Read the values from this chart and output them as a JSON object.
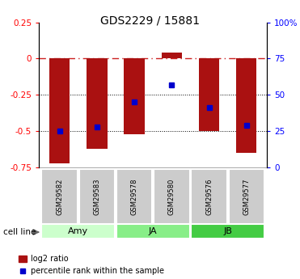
{
  "title": "GDS2229 / 15881",
  "samples": [
    "GSM29582",
    "GSM29583",
    "GSM29578",
    "GSM29580",
    "GSM29576",
    "GSM29577"
  ],
  "log2_ratios": [
    -0.72,
    -0.62,
    -0.52,
    0.04,
    -0.5,
    -0.65
  ],
  "percentile_ranks_y": [
    -0.5,
    -0.47,
    -0.3,
    -0.18,
    -0.34,
    -0.46
  ],
  "cell_lines": [
    {
      "label": "Amy",
      "start": 0,
      "end": 1,
      "color": "#ccffcc"
    },
    {
      "label": "JA",
      "start": 2,
      "end": 3,
      "color": "#88ee88"
    },
    {
      "label": "JB",
      "start": 4,
      "end": 5,
      "color": "#44cc44"
    }
  ],
  "bar_color": "#aa1111",
  "dot_color": "#0000cc",
  "bar_width": 0.55,
  "ylim_left": [
    -0.75,
    0.25
  ],
  "yticks_left": [
    0.25,
    0.0,
    -0.25,
    -0.5,
    -0.75
  ],
  "yticks_left_labels": [
    "0.25",
    "0",
    "-0.25",
    "-0.5",
    "-0.75"
  ],
  "right_tick_positions": [
    0.25,
    0.0,
    -0.25,
    -0.5,
    -0.75
  ],
  "right_tick_labels": [
    "100%",
    "75",
    "50",
    "25",
    "0"
  ],
  "hline_color_zero": "#cc2222",
  "hline_color_grid": "#000000",
  "sample_box_color": "#cccccc",
  "cell_line_label": "cell line"
}
